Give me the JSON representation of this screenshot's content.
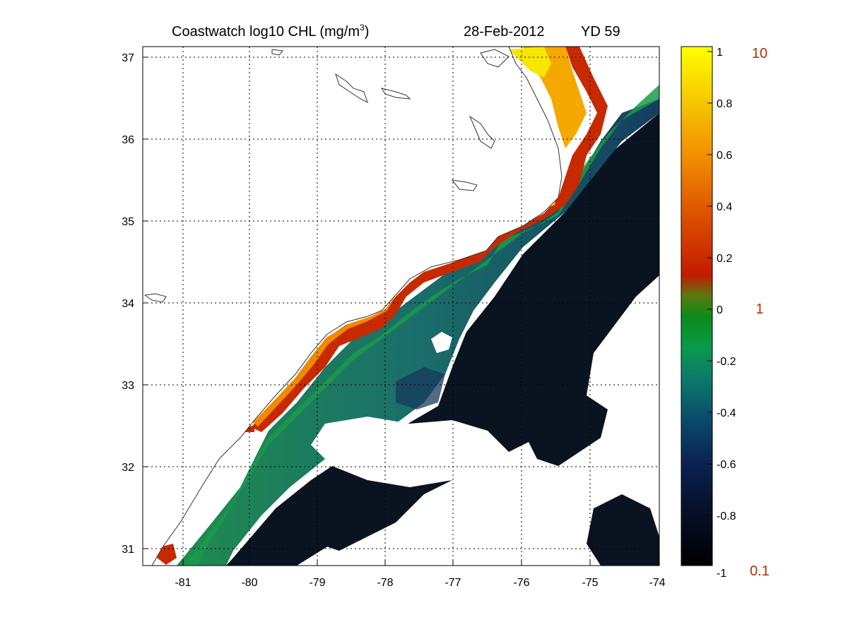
{
  "figure": {
    "title_main": "Coastwatch  log10  CHL (mg/m",
    "title_sup": "3",
    "title_close": ")",
    "date": "28-Feb-2012",
    "yearday": "YD 59"
  },
  "map": {
    "lon_ticks": [
      "-81",
      "-80",
      "-79",
      "-78",
      "-77",
      "-76",
      "-75",
      "-74"
    ],
    "lat_ticks": [
      "37",
      "36",
      "35",
      "34",
      "33",
      "32",
      "31"
    ],
    "lon_range": [
      -81.6,
      -74.0
    ],
    "lat_range": [
      30.8,
      37.15
    ],
    "grid": "dotted"
  },
  "colorbar": {
    "ticks": [
      "1",
      "0.8",
      "0.6",
      "0.4",
      "0.2",
      "0",
      "-0.2",
      "-0.4",
      "-0.6",
      "-0.8",
      "-1"
    ],
    "side_labels": [
      "10",
      "1",
      "0.1"
    ],
    "side_label_color": "#b03000",
    "range": [
      -1,
      1
    ]
  },
  "colors": {
    "ocean_deep": "#0a1420",
    "ocean_shelf": "#1e7a5a",
    "coastal_red": "#c82a00",
    "estuary_yellow": "#f7e600",
    "land": "#ffffff"
  }
}
